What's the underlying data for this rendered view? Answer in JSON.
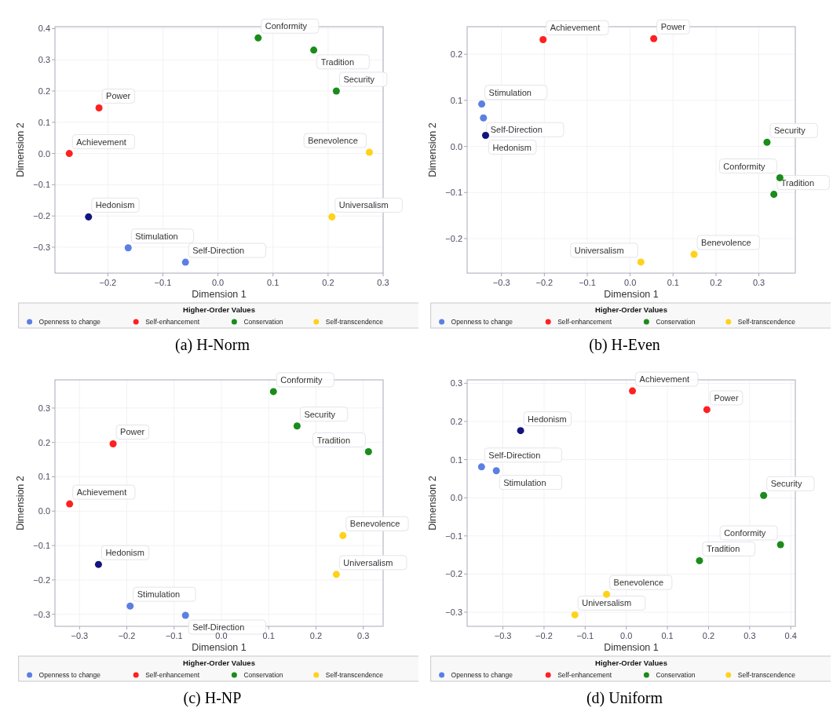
{
  "chart_data": [
    {
      "type": "scatter",
      "title": "(a) H-Norm",
      "xlabel": "Dimension 1",
      "ylabel": "Dimension 2",
      "legend_title": "Higher-Order Values",
      "legend": "bottom",
      "grid": true,
      "marker": "circle",
      "xlim": [
        -0.296,
        0.3
      ],
      "ylim": [
        -0.383,
        0.406
      ],
      "xticks": [
        {
          "value": -0.2,
          "label": "−0.2"
        },
        {
          "value": -0.1,
          "label": "−0.1"
        },
        {
          "value": 0,
          "label": "0.0"
        },
        0.1,
        0.2,
        0.3
      ],
      "yticks": [
        {
          "value": -0.3,
          "label": "−0.3"
        },
        {
          "value": -0.2,
          "label": "−0.2"
        },
        {
          "value": -0.1,
          "label": "−0.1"
        },
        {
          "value": 0,
          "label": "0.0"
        },
        0.1,
        0.2,
        0.3,
        0.4
      ],
      "series": [
        {
          "name": "Openness to change",
          "color": "#5b7fe3",
          "x": [
            -0.163,
            -0.059
          ],
          "values": [
            -0.302,
            -0.348
          ]
        },
        {
          "name": "Self-enhancement",
          "color": "#ff2020",
          "x": [
            -0.216,
            -0.27
          ],
          "values": [
            0.146,
            0.0
          ]
        },
        {
          "name": "Conservation",
          "color": "#1a8c1a",
          "x": [
            0.073,
            0.174,
            0.215
          ],
          "values": [
            0.37,
            0.331,
            0.2
          ]
        },
        {
          "name": "Self-transcendence",
          "color": "#ffd21a",
          "x": [
            0.275,
            0.207
          ],
          "values": [
            0.004,
            -0.203
          ]
        },
        {
          "color": "#14147f",
          "x": [
            -0.235
          ],
          "values": [
            -0.203
          ]
        }
      ],
      "annotations": [
        {
          "text": "Stimulation",
          "x": -0.163,
          "y": -0.302
        },
        {
          "text": "Self-Direction",
          "x": -0.059,
          "y": -0.348
        },
        {
          "text": "Power",
          "x": -0.216,
          "y": 0.146
        },
        {
          "text": "Achievement",
          "x": -0.27,
          "y": 0.0
        },
        {
          "text": "Conformity",
          "x": 0.073,
          "y": 0.37
        },
        {
          "text": "Tradition",
          "x": 0.174,
          "y": 0.331
        },
        {
          "text": "Security",
          "x": 0.215,
          "y": 0.2
        },
        {
          "text": "Benevolence",
          "x": 0.275,
          "y": 0.004
        },
        {
          "text": "Universalism",
          "x": 0.207,
          "y": -0.203
        },
        {
          "text": "Hedonism",
          "x": -0.235,
          "y": -0.203
        }
      ]
    },
    {
      "type": "scatter",
      "title": "(b) H-Even",
      "xlabel": "Dimension 1",
      "ylabel": "Dimension 2",
      "legend_title": "Higher-Order Values",
      "legend": "bottom",
      "grid": true,
      "marker": "circle",
      "xlim": [
        -0.38,
        0.385
      ],
      "ylim": [
        -0.275,
        0.26
      ],
      "xticks": [
        {
          "value": -0.3,
          "label": "−0.3"
        },
        {
          "value": -0.2,
          "label": "−0.2"
        },
        {
          "value": -0.1,
          "label": "−0.1"
        },
        {
          "value": 0,
          "label": "0.0"
        },
        0.1,
        0.2,
        0.3
      ],
      "yticks": [
        {
          "value": -0.2,
          "label": "−0.2"
        },
        {
          "value": -0.1,
          "label": "−0.1"
        },
        {
          "value": 0,
          "label": "0.0"
        },
        0.1,
        0.2
      ],
      "series": [
        {
          "name": "Openness to change",
          "color": "#5b7fe3",
          "x": [
            -0.346,
            -0.342
          ],
          "values": [
            0.092,
            0.062
          ]
        },
        {
          "name": "Self-enhancement",
          "color": "#ff2020",
          "x": [
            -0.203,
            0.055
          ],
          "values": [
            0.232,
            0.234
          ]
        },
        {
          "name": "Conservation",
          "color": "#1a8c1a",
          "x": [
            0.319,
            0.349,
            0.335
          ],
          "values": [
            0.009,
            -0.068,
            -0.104
          ]
        },
        {
          "name": "Self-transcendence",
          "color": "#ffd21a",
          "x": [
            0.149,
            0.025
          ],
          "values": [
            -0.234,
            -0.251
          ]
        },
        {
          "color": "#14147f",
          "x": [
            -0.337
          ],
          "values": [
            0.024
          ]
        }
      ],
      "annotations": [
        {
          "text": "Stimulation",
          "x": -0.346,
          "y": 0.092
        },
        {
          "text": "Self-Direction",
          "x": -0.342,
          "y": 0.062
        },
        {
          "text": "Achievement",
          "x": -0.203,
          "y": 0.232
        },
        {
          "text": "Power",
          "x": 0.055,
          "y": 0.234
        },
        {
          "text": "Security",
          "x": 0.319,
          "y": 0.009
        },
        {
          "text": "Conformity",
          "x": 0.349,
          "y": -0.068
        },
        {
          "text": "Tradition",
          "x": 0.335,
          "y": -0.104
        },
        {
          "text": "Benevolence",
          "x": 0.149,
          "y": -0.234
        },
        {
          "text": "Universalism",
          "x": 0.025,
          "y": -0.251
        },
        {
          "text": "Hedonism",
          "x": -0.337,
          "y": 0.024
        }
      ]
    },
    {
      "type": "scatter",
      "title": "(c) H-NP",
      "xlabel": "Dimension 1",
      "ylabel": "Dimension 2",
      "legend_title": "Higher-Order Values",
      "legend": "bottom",
      "grid": true,
      "marker": "circle",
      "xlim": [
        -0.352,
        0.342
      ],
      "ylim": [
        -0.335,
        0.382
      ],
      "xticks": [
        {
          "value": -0.3,
          "label": "−0.3"
        },
        {
          "value": -0.2,
          "label": "−0.2"
        },
        {
          "value": -0.1,
          "label": "−0.1"
        },
        {
          "value": 0,
          "label": "0.0"
        },
        0.1,
        0.2,
        0.3
      ],
      "yticks": [
        {
          "value": -0.3,
          "label": "−0.3"
        },
        {
          "value": -0.2,
          "label": "−0.2"
        },
        {
          "value": -0.1,
          "label": "−0.1"
        },
        {
          "value": 0,
          "label": "0.0"
        },
        0.1,
        0.2,
        0.3
      ],
      "series": [
        {
          "name": "Openness to change",
          "color": "#5b7fe3",
          "x": [
            -0.193,
            -0.076
          ],
          "values": [
            -0.276,
            -0.303
          ]
        },
        {
          "name": "Self-enhancement",
          "color": "#ff2020",
          "x": [
            -0.229,
            -0.321
          ],
          "values": [
            0.196,
            0.021
          ]
        },
        {
          "name": "Conservation",
          "color": "#1a8c1a",
          "x": [
            0.11,
            0.16,
            0.311
          ],
          "values": [
            0.348,
            0.248,
            0.173
          ]
        },
        {
          "name": "Self-transcendence",
          "color": "#ffd21a",
          "x": [
            0.257,
            0.243
          ],
          "values": [
            -0.071,
            -0.184
          ]
        },
        {
          "color": "#14147f",
          "x": [
            -0.26
          ],
          "values": [
            -0.155
          ]
        }
      ],
      "annotations": [
        {
          "text": "Stimulation",
          "x": -0.193,
          "y": -0.276
        },
        {
          "text": "Self-Direction",
          "x": -0.076,
          "y": -0.303
        },
        {
          "text": "Power",
          "x": -0.229,
          "y": 0.196
        },
        {
          "text": "Achievement",
          "x": -0.321,
          "y": 0.021
        },
        {
          "text": "Conformity",
          "x": 0.11,
          "y": 0.348
        },
        {
          "text": "Security",
          "x": 0.16,
          "y": 0.248
        },
        {
          "text": "Tradition",
          "x": 0.311,
          "y": 0.173
        },
        {
          "text": "Benevolence",
          "x": 0.257,
          "y": -0.071
        },
        {
          "text": "Universalism",
          "x": 0.243,
          "y": -0.184
        },
        {
          "text": "Hedonism",
          "x": -0.26,
          "y": -0.155
        }
      ]
    },
    {
      "type": "scatter",
      "title": "(d) Uniform",
      "xlabel": "Dimension 1",
      "ylabel": "Dimension 2",
      "legend_title": "Higher-Order Values",
      "legend": "bottom",
      "grid": true,
      "marker": "circle",
      "xlim": [
        -0.387,
        0.411
      ],
      "ylim": [
        -0.337,
        0.309
      ],
      "xticks": [
        {
          "value": -0.3,
          "label": "−0.3"
        },
        {
          "value": -0.2,
          "label": "−0.2"
        },
        {
          "value": -0.1,
          "label": "−0.1"
        },
        {
          "value": 0,
          "label": "0.0"
        },
        0.1,
        0.2,
        0.3,
        0.4
      ],
      "yticks": [
        {
          "value": -0.3,
          "label": "−0.3"
        },
        {
          "value": -0.2,
          "label": "−0.2"
        },
        {
          "value": -0.1,
          "label": "−0.1"
        },
        {
          "value": 0,
          "label": "0.0"
        },
        0.1,
        0.2,
        0.3
      ],
      "series": [
        {
          "name": "Openness to change",
          "color": "#5b7fe3",
          "x": [
            -0.352,
            -0.316
          ],
          "values": [
            0.081,
            0.071
          ]
        },
        {
          "name": "Self-enhancement",
          "color": "#ff2020",
          "x": [
            0.015,
            0.196
          ],
          "values": [
            0.28,
            0.231
          ]
        },
        {
          "name": "Conservation",
          "color": "#1a8c1a",
          "x": [
            0.334,
            0.375,
            0.178
          ],
          "values": [
            0.006,
            -0.123,
            -0.165
          ]
        },
        {
          "name": "Self-transcendence",
          "color": "#ffd21a",
          "x": [
            -0.048,
            -0.125
          ],
          "values": [
            -0.253,
            -0.307
          ]
        },
        {
          "color": "#14147f",
          "x": [
            -0.257
          ],
          "values": [
            0.176
          ]
        }
      ],
      "annotations": [
        {
          "text": "Self-Direction",
          "x": -0.352,
          "y": 0.081
        },
        {
          "text": "Stimulation",
          "x": -0.316,
          "y": 0.071
        },
        {
          "text": "Achievement",
          "x": 0.015,
          "y": 0.28
        },
        {
          "text": "Power",
          "x": 0.196,
          "y": 0.231
        },
        {
          "text": "Security",
          "x": 0.334,
          "y": 0.006
        },
        {
          "text": "Conformity",
          "x": 0.375,
          "y": -0.123
        },
        {
          "text": "Tradition",
          "x": 0.178,
          "y": -0.165
        },
        {
          "text": "Benevolence",
          "x": -0.048,
          "y": -0.253
        },
        {
          "text": "Universalism",
          "x": -0.125,
          "y": -0.307
        },
        {
          "text": "Hedonism",
          "x": -0.257,
          "y": 0.176
        }
      ]
    }
  ]
}
